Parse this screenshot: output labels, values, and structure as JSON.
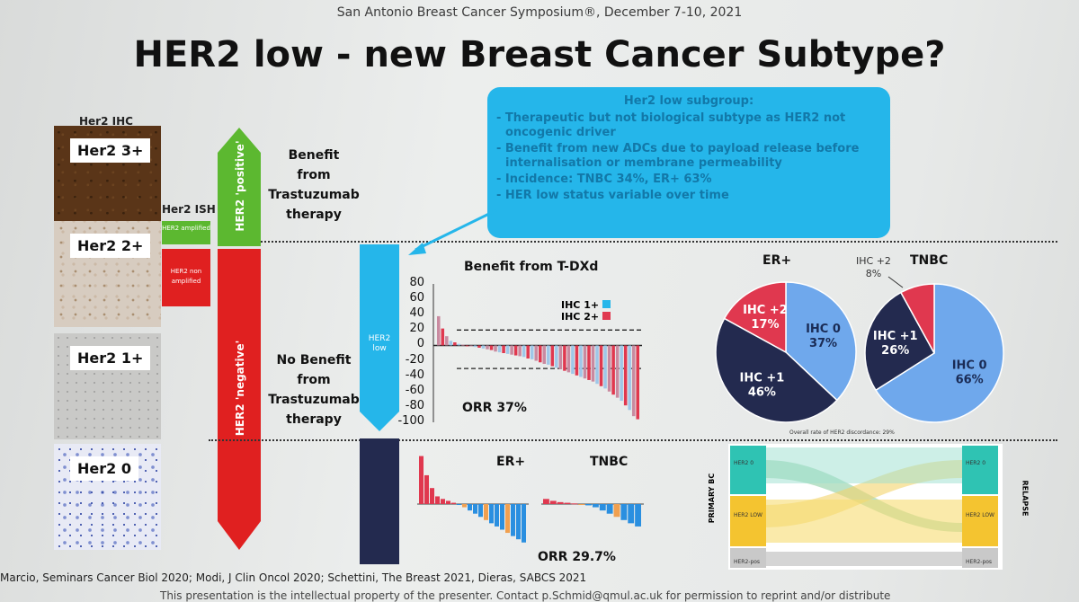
{
  "header": "San Antonio Breast Cancer Symposium®, December 7-10, 2021",
  "title": "HER2 low - new Breast Cancer Subtype?",
  "ihc_column": {
    "label": "Her2 IHC",
    "tiles": [
      "Her2 3+",
      "Her2 2+",
      "Her2 1+",
      "Her2 0"
    ]
  },
  "ish_column": {
    "label": "Her2 ISH",
    "amplified": "HER2 amplified",
    "non_amplified": "HER2 non amplified"
  },
  "her2_bar": {
    "positive": "HER2 'positive'",
    "negative": "HER2 'negative'"
  },
  "benefit_text": {
    "yes": [
      "Benefit",
      "from",
      "Trastuzumab",
      "therapy"
    ],
    "no": [
      "No Benefit",
      "from",
      "Trastuzumab",
      "therapy"
    ]
  },
  "her2low_arrow_label": [
    "HER2",
    "low"
  ],
  "callout": {
    "title": "Her2 low subgroup:",
    "bullets": [
      "Therapeutic but not biological subtype as HER2 not oncogenic driver",
      "Benefit from new ADCs due to payload release before internalisation or membrane permeability",
      "Incidence: TNBC 34%, ER+ 63%",
      "HER low status variable over time"
    ]
  },
  "colors": {
    "blue": "#25b6ea",
    "green": "#5cb830",
    "red": "#e02020",
    "navy": "#232a4f",
    "pie_blue": "#6fa8ec",
    "pink": "#e0384f"
  },
  "chart_data": [
    {
      "type": "bar",
      "title": "Benefit from T-DXd",
      "ylabel": "",
      "ylim": [
        -100,
        80
      ],
      "yticks": [
        80,
        60,
        40,
        20,
        0,
        -20,
        -40,
        -60,
        -80,
        -100
      ],
      "legend": [
        "IHC 1+",
        "IHC 2+"
      ],
      "reference_lines": [
        20,
        -30
      ],
      "annotation": "ORR 37%",
      "values": [
        38,
        22,
        12,
        6,
        4,
        2,
        1,
        0,
        -1,
        -2,
        -3,
        -4,
        -5,
        -6,
        -8,
        -9,
        -10,
        -11,
        -12,
        -13,
        -14,
        -15,
        -17,
        -18,
        -20,
        -22,
        -24,
        -25,
        -27,
        -29,
        -31,
        -33,
        -35,
        -37,
        -39,
        -41,
        -43,
        -45,
        -47,
        -50,
        -53,
        -56,
        -60,
        -64,
        -68,
        -72,
        -78,
        -84,
        -92,
        -96
      ]
    },
    {
      "type": "pie",
      "title": "ER+",
      "labels": [
        "IHC 0",
        "IHC +1",
        "IHC +2"
      ],
      "values": [
        37,
        46,
        17
      ],
      "value_labels": [
        "37%",
        "46%",
        "17%"
      ]
    },
    {
      "type": "pie",
      "title": "TNBC",
      "labels": [
        "IHC 0",
        "IHC +1",
        "IHC +2"
      ],
      "values": [
        66,
        26,
        8
      ],
      "value_labels": [
        "66%",
        "26%",
        "8%"
      ]
    },
    {
      "type": "bar",
      "title": "ER+",
      "values": [
        75,
        45,
        25,
        12,
        8,
        5,
        2,
        0,
        -5,
        -10,
        -15,
        -20,
        -25,
        -30,
        -35,
        -40,
        -45,
        -50,
        -55,
        -60
      ]
    },
    {
      "type": "bar",
      "title": "TNBC",
      "values": [
        8,
        5,
        3,
        2,
        1,
        0,
        -2,
        -5,
        -10,
        -15,
        -20,
        -25,
        -30,
        -35
      ]
    }
  ],
  "orr_bottom": "ORR 29.7%",
  "sankey": {
    "caption": "Overall rate of HER2 discordance: 29%",
    "left_axis": "PRIMARY BC",
    "right_axis": "RELAPSE",
    "left_nodes": [
      "HER2 0",
      "HER2 LOW",
      "HER2-pos"
    ],
    "right_nodes": [
      "HER2 0",
      "HER2 LOW",
      "HER2-pos"
    ]
  },
  "footer": "Marcio, Seminars Cancer Biol 2020; Modi, J Clin Oncol 2020; Schettini, The Breast 2021, Dieras, SABCS 2021",
  "footer2": "This presentation is the intellectual property of the presenter. Contact p.Schmid@qmul.ac.uk for permission to reprint and/or distribute"
}
